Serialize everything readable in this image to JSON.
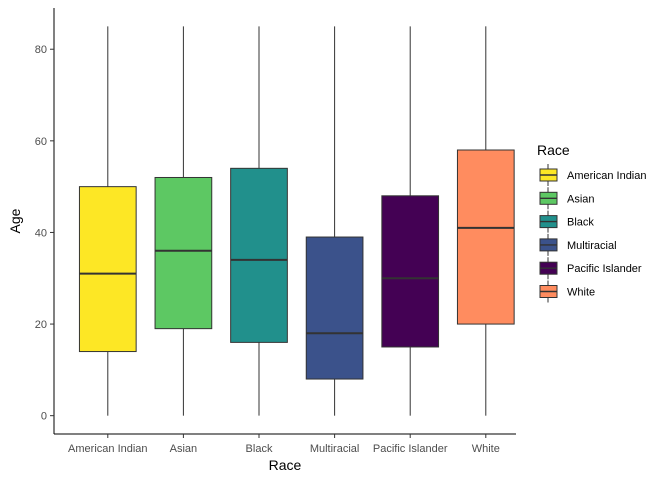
{
  "chart_data": {
    "type": "boxplot",
    "title": "",
    "xlabel": "Race",
    "ylabel": "Age",
    "ylim": [
      -4,
      89
    ],
    "yticks": [
      0,
      20,
      40,
      60,
      80
    ],
    "grid": false,
    "legend": {
      "title": "Race",
      "position": "right",
      "entries": [
        "American Indian",
        "Asian",
        "Black",
        "Multiracial",
        "Pacific Islander",
        "White"
      ]
    },
    "categories": [
      "American Indian",
      "Asian",
      "Black",
      "Multiracial",
      "Pacific Islander",
      "White"
    ],
    "boxes": [
      {
        "category": "American Indian",
        "min": 0,
        "q1": 14,
        "median": 31,
        "q3": 50,
        "max": 85,
        "color": "#FDE725"
      },
      {
        "category": "Asian",
        "min": 0,
        "q1": 19,
        "median": 36,
        "q3": 52,
        "max": 85,
        "color": "#5DC863"
      },
      {
        "category": "Black",
        "min": 0,
        "q1": 16,
        "median": 34,
        "q3": 54,
        "max": 85,
        "color": "#21908C"
      },
      {
        "category": "Multiracial",
        "min": 0,
        "q1": 8,
        "median": 18,
        "q3": 39,
        "max": 85,
        "color": "#3B528B"
      },
      {
        "category": "Pacific Islander",
        "min": 0,
        "q1": 15,
        "median": 30,
        "q3": 48,
        "max": 85,
        "color": "#440154"
      },
      {
        "category": "White",
        "min": 0,
        "q1": 20,
        "median": 41,
        "q3": 58,
        "max": 85,
        "color": "#FF8C5F"
      }
    ]
  }
}
